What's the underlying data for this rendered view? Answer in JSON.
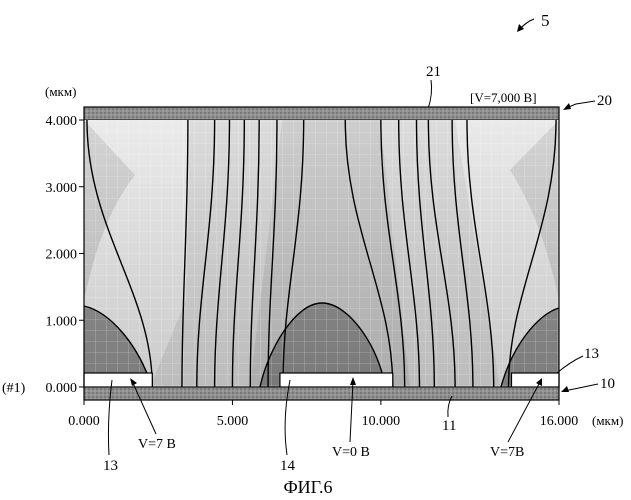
{
  "figure": {
    "ref_number": "5",
    "caption": "ФИГ.6",
    "y_unit": "(мкм)",
    "x_unit": "(мкм)",
    "top_electrode_label": "[V=7,000 B]",
    "row_marker": "(#1)"
  },
  "reference_numerals": {
    "n21": "21",
    "n20": "20",
    "n13_right": "13",
    "n10": "10",
    "n13_left": "13",
    "n14": "14",
    "n11": "11"
  },
  "electrode_labels": {
    "left": "V=7 B",
    "center": "V=0 B",
    "right": "V=7B"
  },
  "chart_data": {
    "type": "heatmap",
    "title": "",
    "xlabel": "(мкм)",
    "ylabel": "(мкм)",
    "x_ticks": [
      "0.000",
      "5.000",
      "10.000",
      "16.000"
    ],
    "y_ticks": [
      "4.000",
      "3.000",
      "2.000",
      "1.000",
      "0.000"
    ],
    "x_tick_values": [
      0,
      5,
      10,
      16
    ],
    "y_tick_values": [
      4,
      3,
      2,
      1,
      0
    ],
    "xlim": [
      0,
      16
    ],
    "ylim": [
      0,
      4
    ],
    "grid": true,
    "electrodes": [
      {
        "x_start": 0,
        "x_end": 2.3
      },
      {
        "x_start": 6.6,
        "x_end": 10.4
      },
      {
        "x_start": 14.4,
        "x_end": 16
      }
    ],
    "contour_x_at_top": [
      0.1,
      3.5,
      4.4,
      4.9,
      5.4,
      5.9,
      6.5,
      7.4,
      8.8,
      10.0,
      10.6,
      11.2,
      11.6,
      12.4,
      12.9,
      15.9
    ],
    "contour_x_at_bottom": [
      2.3,
      3.3,
      3.8,
      4.4,
      5.0,
      5.6,
      6.2,
      6.7,
      10.4,
      10.8,
      11.3,
      11.8,
      12.5,
      13.1,
      13.8,
      14.3
    ]
  }
}
